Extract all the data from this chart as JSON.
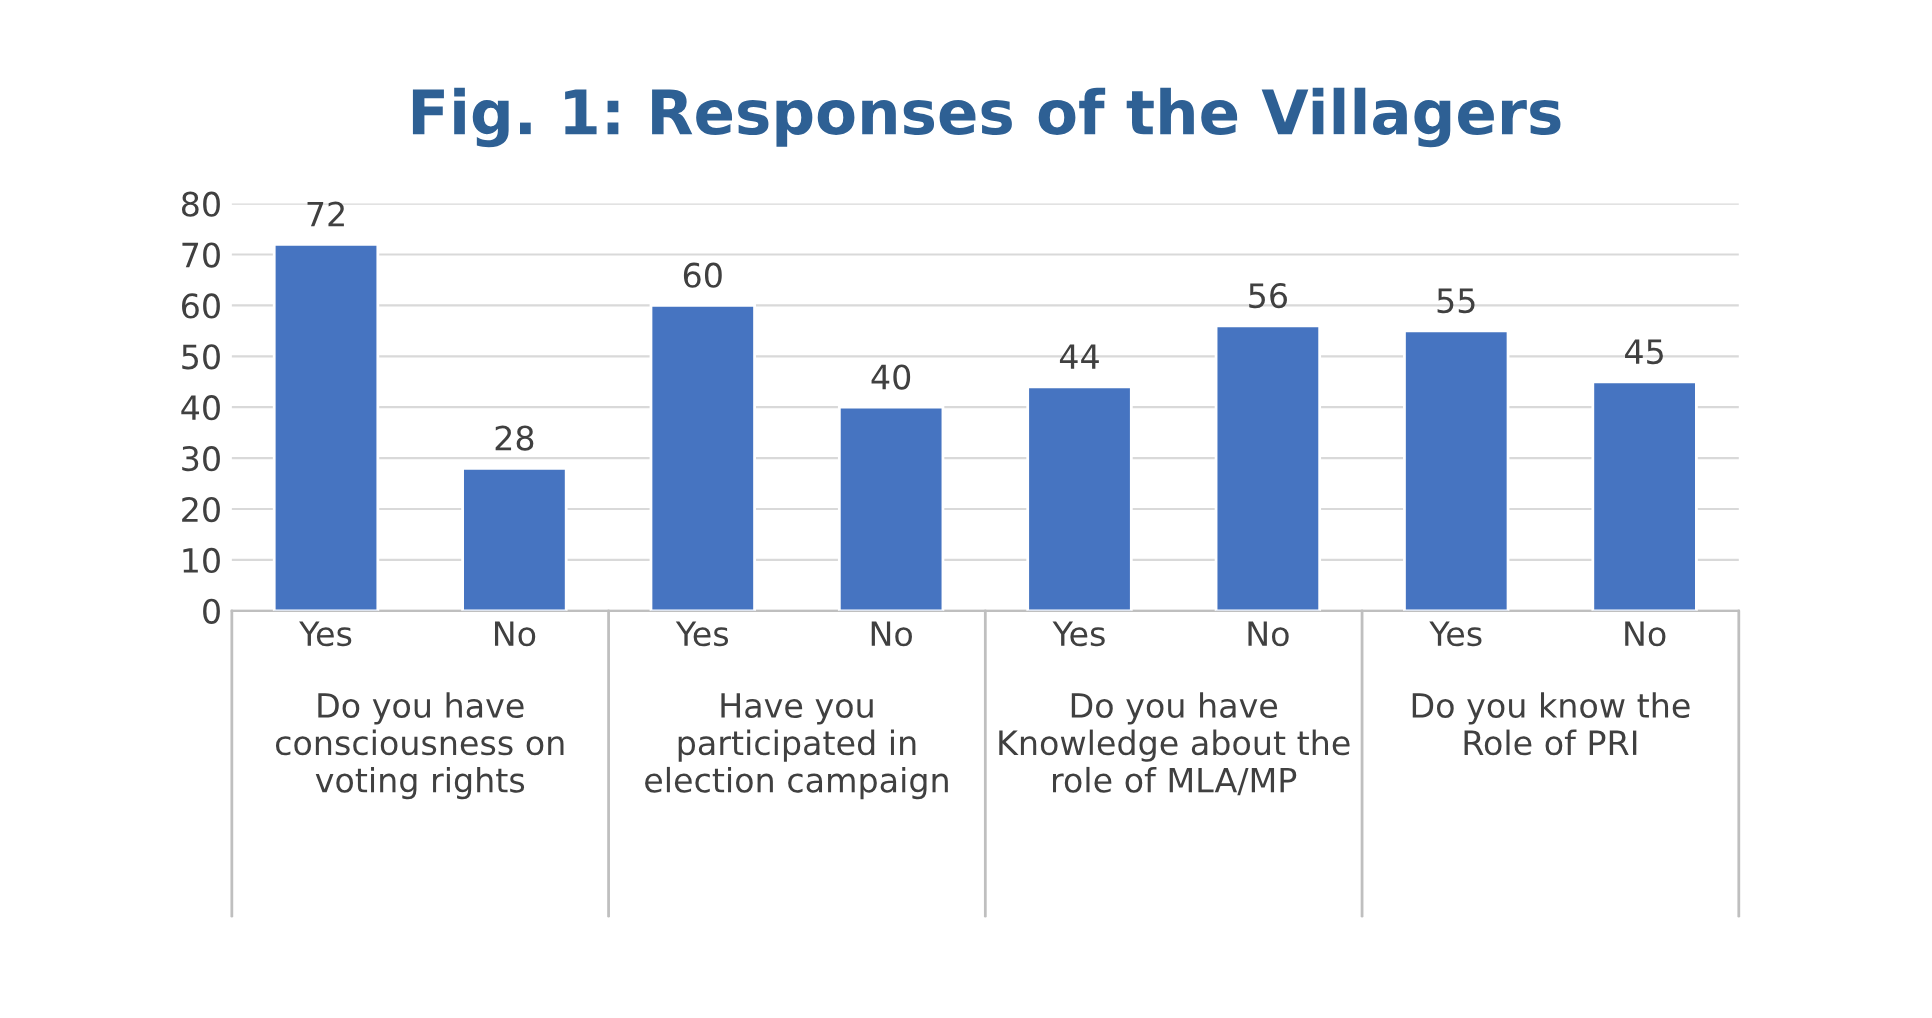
{
  "chart_data": {
    "type": "bar",
    "title": "Fig. 1: Responses of the Villagers",
    "categories": [
      "Yes",
      "No",
      "Yes",
      "No",
      "Yes",
      "No",
      "Yes",
      "No"
    ],
    "values": [
      72,
      28,
      60,
      40,
      44,
      56,
      55,
      45
    ],
    "color": "#4674c1",
    "ylim": [
      0,
      80
    ],
    "yticks": [
      0,
      10,
      20,
      30,
      40,
      50,
      60,
      70,
      80
    ],
    "grid": "y",
    "data_labels": true,
    "annotations": [
      "Do you have consciousness on voting rights",
      "Have you participated in election campaign",
      "Do you have Knowledge about the role of MLA/MP",
      "Do you know the Role of PRI"
    ]
  }
}
